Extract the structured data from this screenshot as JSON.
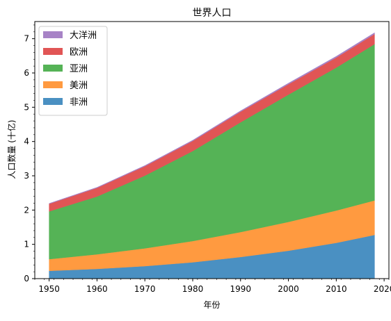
{
  "chart_data": {
    "type": "area",
    "stacked": true,
    "title": "世界人口",
    "xlabel": "年份",
    "ylabel": "人口数量 (十亿)",
    "x": [
      1950,
      1960,
      1970,
      1980,
      1990,
      2000,
      2010,
      2018
    ],
    "xlim": [
      1947,
      2021
    ],
    "ylim": [
      0,
      7.5
    ],
    "xticks": [
      1950,
      1960,
      1970,
      1980,
      1990,
      2000,
      2010,
      2020
    ],
    "yticks": [
      0,
      1,
      2,
      3,
      4,
      5,
      6,
      7
    ],
    "grid": false,
    "legend_position": "upper-left",
    "series": [
      {
        "name": "非洲",
        "color": "#4a90c2",
        "values": [
          0.228,
          0.284,
          0.365,
          0.477,
          0.631,
          0.814,
          1.044,
          1.275
        ]
      },
      {
        "name": "美洲",
        "color": "#ff9a40",
        "values": [
          0.34,
          0.425,
          0.519,
          0.619,
          0.727,
          0.84,
          0.943,
          1.006
        ]
      },
      {
        "name": "亚洲",
        "color": "#55b356",
        "values": [
          1.394,
          1.686,
          2.12,
          2.625,
          3.202,
          3.714,
          4.169,
          4.561
        ]
      },
      {
        "name": "欧洲",
        "color": "#e15555",
        "values": [
          0.22,
          0.253,
          0.276,
          0.295,
          0.31,
          0.303,
          0.294,
          0.293
        ]
      },
      {
        "name": "大洋洲",
        "color": "#a783c6",
        "values": [
          0.012,
          0.015,
          0.019,
          0.022,
          0.026,
          0.031,
          0.036,
          0.039
        ]
      }
    ]
  }
}
